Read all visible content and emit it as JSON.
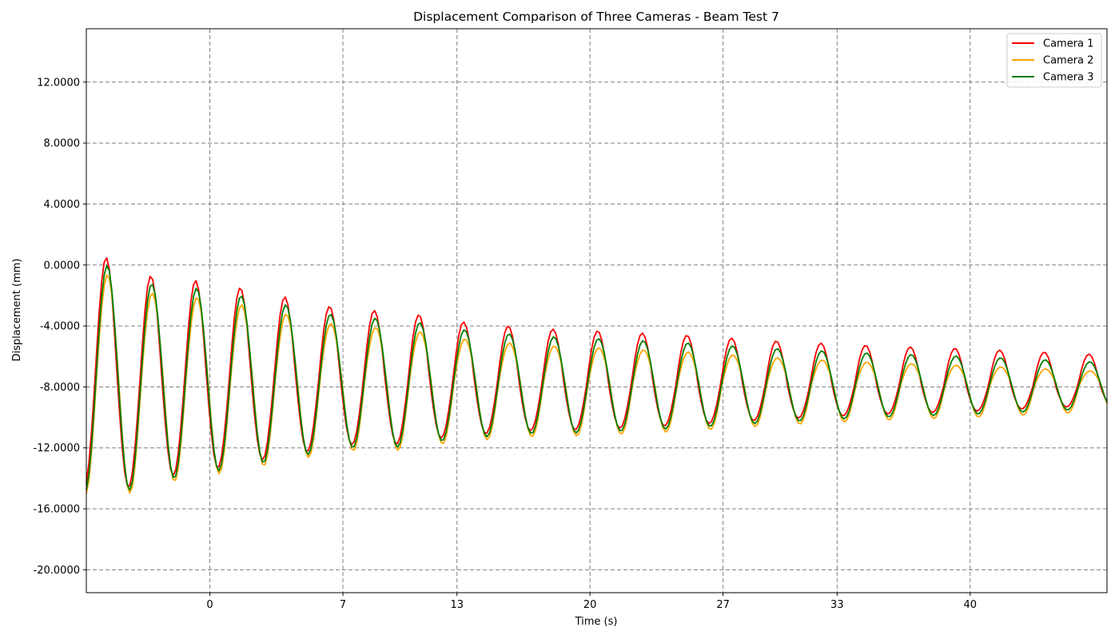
{
  "chart_data": {
    "type": "line",
    "title": "Displacement Comparison of Three Cameras - Beam Test 7",
    "xlabel": "Time (s)",
    "ylabel": "Displacement (mm)",
    "xlim": [
      -6.5,
      47.2
    ],
    "ylim": [
      -21.5,
      15.5
    ],
    "x_ticks": [
      0,
      7,
      13,
      20,
      27,
      33,
      40
    ],
    "x_tick_labels": [
      "0",
      "7",
      "13",
      "20",
      "27",
      "33",
      "40"
    ],
    "y_ticks": [
      -20,
      -16,
      -12,
      -8,
      -4,
      0,
      4,
      8,
      12
    ],
    "y_tick_labels": [
      "-20.0000",
      "-16.0000",
      "-12.0000",
      "-8.0000",
      "-4.0000",
      "0.0000",
      "4.0000",
      "8.0000",
      "12.0000"
    ],
    "grid": true,
    "legend_position": "top-right",
    "oscillation": {
      "t_start": -6.5,
      "t_end": 47.2,
      "samples": 400,
      "period": 2.35,
      "phase_peak": -5.4,
      "center": [
        [
          -6.5,
          -7.3
        ],
        [
          -4,
          -7.8
        ],
        [
          0,
          -7.6
        ],
        [
          7,
          -7.7
        ],
        [
          13,
          -7.8
        ],
        [
          20,
          -7.9
        ],
        [
          27,
          -7.9
        ],
        [
          33,
          -7.9
        ],
        [
          40,
          -7.9
        ],
        [
          47.2,
          -7.9
        ]
      ],
      "amplitude": [
        [
          -6.5,
          7.6
        ],
        [
          -5.4,
          7.5
        ],
        [
          -3,
          6.5
        ],
        [
          0,
          6.0
        ],
        [
          3,
          5.3
        ],
        [
          7,
          4.3
        ],
        [
          10,
          4.2
        ],
        [
          13,
          3.6
        ],
        [
          17,
          3.2
        ],
        [
          20,
          3.1
        ],
        [
          25,
          2.8
        ],
        [
          30,
          2.4
        ],
        [
          35,
          2.1
        ],
        [
          40,
          1.9
        ],
        [
          47.2,
          1.5
        ]
      ]
    },
    "series": [
      {
        "name": "Camera 1",
        "color": "#ff0000",
        "peak_offset": 0.5,
        "trough_offset": 0.2,
        "time_shift": -0.05
      },
      {
        "name": "Camera 2",
        "color": "#ffa500",
        "peak_offset": -0.6,
        "trough_offset": -0.2,
        "time_shift": 0.02
      },
      {
        "name": "Camera 3",
        "color": "#008000",
        "peak_offset": 0.0,
        "trough_offset": 0.0,
        "time_shift": 0.0
      }
    ]
  }
}
